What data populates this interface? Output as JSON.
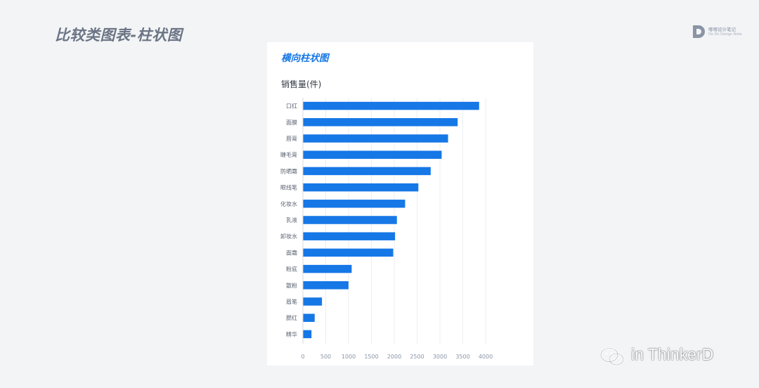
{
  "page": {
    "title": "比较类图表-柱状图"
  },
  "brand": {
    "name": "嘟嘟设计笔记",
    "subtitle": "Do Do Design Note"
  },
  "card": {
    "title": "横向柱状图"
  },
  "watermark": {
    "text": "in ThinkerD"
  },
  "colors": {
    "bar": "#1677e6",
    "accent": "#1677e6"
  },
  "chart_data": {
    "type": "bar",
    "orientation": "horizontal",
    "title": "销售量(件)",
    "categories": [
      "口红",
      "面膜",
      "唇膏",
      "睫毛膏",
      "防晒霜",
      "眼线笔",
      "化妆水",
      "乳液",
      "卸妆水",
      "面霜",
      "粉底",
      "散粉",
      "眉笔",
      "腮红",
      "精华"
    ],
    "values": [
      3850,
      3380,
      3170,
      3030,
      2790,
      2520,
      2230,
      2050,
      2010,
      1970,
      1060,
      990,
      410,
      250,
      180
    ],
    "xlim": [
      0,
      4000
    ],
    "xticks": [
      0,
      500,
      1000,
      1500,
      2000,
      2500,
      3000,
      3500,
      4000
    ],
    "grid": true,
    "legend": "none"
  }
}
